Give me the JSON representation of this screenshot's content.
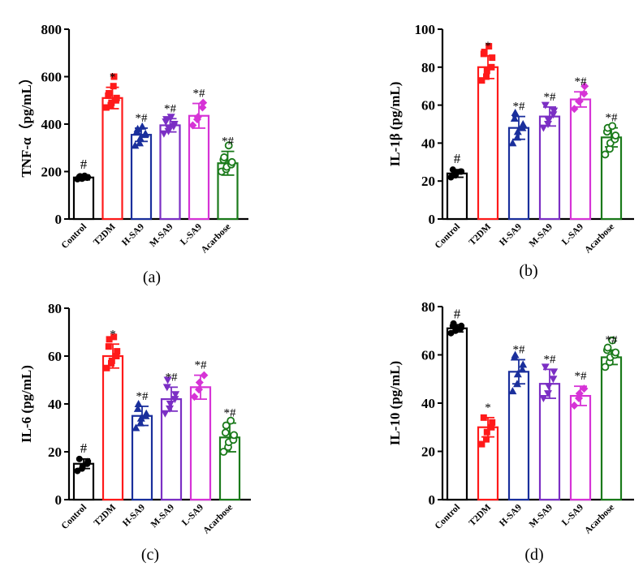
{
  "figure": {
    "group_labels": [
      "Control",
      "T2DM",
      "H-SA9",
      "M-SA9",
      "L-SA9",
      "Acarbose"
    ],
    "group_colors": [
      "#000000",
      "#ff1a1a",
      "#1a2f9c",
      "#7b2fc4",
      "#d633d6",
      "#1a7a1a"
    ]
  },
  "chart_data": [
    {
      "type": "bar",
      "panel_label": "(a)",
      "ylabel": "TNF-α（pg/mL）",
      "ylim": [
        0,
        800
      ],
      "yticks": [
        "0",
        "200",
        "400",
        "600",
        "800"
      ],
      "categories": [
        "Control",
        "T2DM",
        "H-SA9",
        "M-SA9",
        "L-SA9",
        "Acarbose"
      ],
      "values": [
        175,
        510,
        355,
        395,
        435,
        235
      ],
      "errors": [
        10,
        45,
        28,
        28,
        52,
        50
      ],
      "markers": [
        "#",
        "*",
        "*#",
        "*#",
        "*#",
        "*#"
      ],
      "points": [
        [
          168,
          170,
          172,
          174,
          176,
          178,
          180,
          182
        ],
        [
          470,
          480,
          490,
          500,
          510,
          520,
          530,
          560,
          600
        ],
        [
          310,
          320,
          340,
          355,
          360,
          370,
          380,
          390
        ],
        [
          360,
          370,
          380,
          390,
          400,
          410,
          420,
          430
        ],
        [
          395,
          420,
          430,
          470,
          490
        ],
        [
          200,
          210,
          220,
          230,
          240,
          250,
          260,
          310
        ]
      ]
    },
    {
      "type": "bar",
      "panel_label": "(b)",
      "ylabel": "IL-1β (pg/mL)",
      "ylim": [
        0,
        100
      ],
      "yticks": [
        "0",
        "20",
        "40",
        "60",
        "80",
        "100"
      ],
      "categories": [
        "Control",
        "T2DM",
        "H-SA9",
        "M-SA9",
        "L-SA9",
        "Acarbose"
      ],
      "values": [
        24,
        80,
        48,
        54,
        63,
        43
      ],
      "errors": [
        2,
        6,
        6,
        5,
        4,
        5
      ],
      "markers": [
        "#",
        "*",
        "*#",
        "*#",
        "*#",
        "*#"
      ],
      "points": [
        [
          22,
          23,
          24,
          25,
          25,
          26
        ],
        [
          73,
          75,
          78,
          80,
          85,
          87,
          88,
          91
        ],
        [
          40,
          43,
          46,
          48,
          50,
          53,
          56
        ],
        [
          48,
          50,
          52,
          55,
          57,
          60
        ],
        [
          58,
          62,
          62,
          66,
          70
        ],
        [
          34,
          37,
          40,
          42,
          44,
          46,
          48,
          49
        ]
      ]
    },
    {
      "type": "bar",
      "panel_label": "(c)",
      "ylabel": "IL-6 (pg/mL)",
      "ylim": [
        0,
        80
      ],
      "yticks": [
        "0",
        "20",
        "40",
        "60",
        "80"
      ],
      "categories": [
        "Control",
        "T2DM",
        "H-SA9",
        "M-SA9",
        "L-SA9",
        "Acarbose"
      ],
      "values": [
        15,
        60,
        35,
        42,
        47,
        26
      ],
      "errors": [
        2,
        5,
        4,
        5,
        5,
        6
      ],
      "markers": [
        "#",
        "*",
        "*#",
        "*#",
        "*#",
        "*#"
      ],
      "points": [
        [
          12,
          13,
          14,
          15,
          16,
          17
        ],
        [
          55,
          57,
          58,
          60,
          62,
          64,
          67,
          68
        ],
        [
          30,
          32,
          34,
          35,
          36,
          38,
          40
        ],
        [
          36,
          38,
          40,
          42,
          44,
          47,
          50
        ],
        [
          43,
          46,
          49,
          52
        ],
        [
          20,
          22,
          24,
          25,
          27,
          28,
          31,
          33
        ]
      ]
    },
    {
      "type": "bar",
      "panel_label": "(d)",
      "ylabel": "IL-10 (pg/mL)",
      "ylim": [
        0,
        80
      ],
      "yticks": [
        "0",
        "20",
        "40",
        "60",
        "80"
      ],
      "categories": [
        "Control",
        "T2DM",
        "H-SA9",
        "M-SA9",
        "L-SA9",
        "Acarbose"
      ],
      "values": [
        71,
        30,
        53,
        48,
        43,
        59
      ],
      "errors": [
        1.5,
        4,
        5,
        6,
        4,
        3
      ],
      "markers": [
        "#",
        "*",
        "*#",
        "*#",
        "*#",
        "*#"
      ],
      "points": [
        [
          69,
          70,
          71,
          71,
          72,
          72,
          73
        ],
        [
          23,
          25,
          28,
          30,
          32,
          34
        ],
        [
          45,
          48,
          52,
          54,
          56,
          59,
          60
        ],
        [
          42,
          44,
          47,
          50,
          53,
          55
        ],
        [
          39,
          42,
          44,
          46
        ],
        [
          55,
          57,
          59,
          60,
          61,
          62,
          63,
          66
        ]
      ]
    }
  ]
}
